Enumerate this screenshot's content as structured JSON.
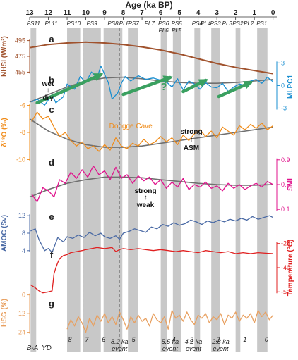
{
  "chart_data": {
    "type": "line",
    "title": "",
    "x_axis": {
      "label": "Age (ka BP)",
      "ticks": [
        "13",
        "12",
        "11",
        "10",
        "9",
        "8",
        "7",
        "6",
        "5",
        "4",
        "3",
        "2",
        "1",
        "0"
      ],
      "range": [
        13.0,
        -0.2
      ],
      "position": "top"
    },
    "phase_bands": [
      {
        "label": "PS11",
        "from": 12.95,
        "to": 12.65
      },
      {
        "label": "PS10",
        "from": 11.0,
        "to": 10.3
      },
      {
        "label": "PS9",
        "from": 10.15,
        "to": 9.2
      },
      {
        "label": "PS8",
        "from": 9.05,
        "to": 8.05
      },
      {
        "label": "PS7",
        "from": 7.75,
        "to": 7.2
      },
      {
        "label": "PS6",
        "from": 6.0,
        "to": 5.65
      },
      {
        "label": "PS5",
        "from": 5.35,
        "to": 4.9
      },
      {
        "label": "PS4",
        "from": 4.2,
        "to": 3.9
      },
      {
        "label": "PS3",
        "from": 3.3,
        "to": 2.85
      },
      {
        "label": "PS2",
        "from": 2.0,
        "to": 1.75
      },
      {
        "label": "PS1",
        "from": 0.85,
        "to": 0.3
      }
    ],
    "phase_labels": [
      {
        "label": "PS11",
        "x": 12.8
      },
      {
        "label": "PL11",
        "x": 11.85
      },
      {
        "label": "PS10",
        "x": 10.65
      },
      {
        "label": "PS9",
        "x": 9.68
      },
      {
        "label": "PS8",
        "x": 8.55
      },
      {
        "label": "PL8",
        "x": 7.95
      },
      {
        "label": "PS7",
        "x": 7.45
      },
      {
        "label": "PL7",
        "x": 6.6
      },
      {
        "label": "PS6",
        "x": 5.85
      },
      {
        "label": "PL6",
        "x": 5.85
      },
      {
        "label": "PS5",
        "x": 5.15
      },
      {
        "label": "PL5",
        "x": 5.15
      },
      {
        "label": "PS4",
        "x": 4.05
      },
      {
        "label": "PL4",
        "x": 3.6
      },
      {
        "label": "PS3",
        "x": 3.08
      },
      {
        "label": "PL3",
        "x": 2.45
      },
      {
        "label": "PS2",
        "x": 1.88
      },
      {
        "label": "PL2",
        "x": 1.3
      },
      {
        "label": "PS1",
        "x": 0.6
      }
    ],
    "dashed_lines": [
      10.15,
      8.2
    ],
    "panels": [
      {
        "id": "a",
        "name": "NHSI",
        "ylabel": "NHSI (W/m²)",
        "side": "left",
        "color": "#a0522d",
        "range": [
          450,
          500
        ],
        "ticks": [
          455,
          475,
          495
        ],
        "x": [
          13,
          12,
          11,
          10,
          9,
          8,
          7,
          6,
          5,
          4,
          3,
          2,
          1,
          0
        ],
        "y": [
          486,
          490,
          492,
          493,
          492,
          490,
          487,
          483,
          478,
          472,
          466,
          461,
          457,
          453
        ]
      },
      {
        "id": "b",
        "name": "MLPC1",
        "ylabel": "MLPC1",
        "side": "right",
        "color": "#1a8fd1",
        "range": [
          -3.8,
          3.5
        ],
        "ticks": [
          -3,
          0,
          3
        ],
        "trend_y": [
          -2.2,
          -1.2,
          -0.2,
          0.6,
          1.0,
          1.1,
          0.9,
          0.6,
          0.4,
          0.3,
          0.3,
          0.4,
          0.6,
          0.8
        ],
        "x": [
          12.9,
          12.6,
          12.2,
          11.8,
          11.6,
          11.2,
          11.0,
          10.6,
          10.3,
          10.0,
          9.7,
          9.4,
          9.2,
          9.0,
          8.8,
          8.6,
          8.3,
          8.1,
          7.9,
          7.6,
          7.2,
          6.8,
          6.4,
          6.0,
          5.7,
          5.4,
          5.1,
          4.8,
          4.5,
          4.2,
          3.9,
          3.6,
          3.3,
          3.0,
          2.7,
          2.4,
          2.1,
          1.8,
          1.5,
          1.2,
          0.9,
          0.6,
          0.3,
          0.0
        ],
        "y": [
          -2.2,
          -1.8,
          -2.6,
          -1.2,
          -2.3,
          -1.5,
          0.2,
          -0.5,
          1.2,
          0.4,
          1.8,
          1.0,
          2.6,
          1.5,
          0.4,
          -1.8,
          -1.0,
          0.3,
          1.2,
          0.6,
          1.3,
          0.8,
          1.0,
          0.7,
          0.5,
          -0.2,
          0.9,
          -0.6,
          0.6,
          0.2,
          -0.5,
          0.4,
          -0.2,
          -0.3,
          0.3,
          -0.8,
          -0.2,
          0.2,
          0.0,
          0.6,
          0.8,
          0.3,
          1.1,
          0.5
        ]
      },
      {
        "id": "c",
        "name": "Dongge Cave δ18O",
        "ylabel": "δ¹⁸O (‰)",
        "side": "left",
        "color": "#f08c1a",
        "range": [
          -10.5,
          -5.5
        ],
        "ticks": [
          -10,
          -8,
          -6
        ],
        "inverted": true,
        "annotation": "Dongge Cave",
        "trend_y": [
          -7.0,
          -7.9,
          -8.5,
          -8.9,
          -9.1,
          -9.1,
          -9.0,
          -8.8,
          -8.6,
          -8.4,
          -8.2,
          -8.0,
          -7.8,
          -7.6
        ],
        "x": [
          12.9,
          12.6,
          12.3,
          12.0,
          11.7,
          11.4,
          11.1,
          10.8,
          10.5,
          10.2,
          9.9,
          9.6,
          9.3,
          9.0,
          8.7,
          8.4,
          8.1,
          7.8,
          7.5,
          7.2,
          6.9,
          6.6,
          6.3,
          6.0,
          5.7,
          5.4,
          5.1,
          4.8,
          4.5,
          4.2,
          3.9,
          3.6,
          3.3,
          3.0,
          2.7,
          2.4,
          2.1,
          1.8,
          1.5,
          1.2,
          0.9,
          0.6,
          0.3,
          0.0
        ],
        "y": [
          -7.2,
          -6.5,
          -7.0,
          -6.8,
          -7.6,
          -8.3,
          -8.0,
          -8.6,
          -9.0,
          -8.7,
          -9.2,
          -9.0,
          -9.4,
          -8.9,
          -9.3,
          -8.4,
          -9.0,
          -9.2,
          -8.8,
          -9.0,
          -8.5,
          -8.9,
          -8.7,
          -8.3,
          -8.7,
          -8.4,
          -8.9,
          -8.2,
          -8.6,
          -8.1,
          -7.8,
          -8.3,
          -7.9,
          -8.4,
          -7.6,
          -7.9,
          -8.2,
          -7.5,
          -7.8,
          -7.4,
          -7.7,
          -7.3,
          -7.8,
          -7.5
        ]
      },
      {
        "id": "d",
        "name": "SMI",
        "ylabel": "SMI",
        "side": "right",
        "color": "#e0138c",
        "range": [
          0.0,
          1.0
        ],
        "ticks": [
          0.1,
          0.5,
          0.9
        ],
        "trend_y": [
          0.3,
          0.42,
          0.52,
          0.58,
          0.62,
          0.62,
          0.61,
          0.58,
          0.55,
          0.52,
          0.5,
          0.49,
          0.49,
          0.5
        ],
        "x": [
          12.9,
          12.6,
          12.3,
          12.0,
          11.7,
          11.4,
          11.1,
          10.8,
          10.5,
          10.2,
          9.9,
          9.6,
          9.3,
          9.0,
          8.7,
          8.4,
          8.1,
          7.8,
          7.5,
          7.2,
          6.9,
          6.6,
          6.3,
          6.0,
          5.7,
          5.4,
          5.1,
          4.8,
          4.5,
          4.2,
          3.9,
          3.6,
          3.3,
          3.0,
          2.7,
          2.4,
          2.1,
          1.8,
          1.5,
          1.2,
          0.9,
          0.6,
          0.3,
          0.0
        ],
        "y": [
          0.35,
          0.22,
          0.45,
          0.4,
          0.3,
          0.58,
          0.52,
          0.7,
          0.6,
          0.74,
          0.62,
          0.8,
          0.66,
          0.72,
          0.58,
          0.78,
          0.6,
          0.66,
          0.52,
          0.64,
          0.56,
          0.62,
          0.5,
          0.58,
          0.44,
          0.54,
          0.46,
          0.6,
          0.42,
          0.5,
          0.46,
          0.54,
          0.44,
          0.48,
          0.4,
          0.52,
          0.44,
          0.5,
          0.42,
          0.48,
          0.52,
          0.46,
          0.55,
          0.5
        ]
      },
      {
        "id": "e",
        "name": "AMOC",
        "ylabel": "AMOC (Sv)",
        "side": "left",
        "color": "#4a6aa5",
        "range": [
          3,
          13
        ],
        "ticks": [
          4,
          8,
          12
        ],
        "x": [
          12.95,
          12.7,
          12.5,
          12.2,
          12.0,
          11.8,
          11.5,
          11.2,
          11.0,
          10.7,
          10.4,
          10.1,
          9.8,
          9.5,
          9.2,
          9.0,
          8.7,
          8.4,
          8.2,
          8.0,
          7.7,
          7.4,
          7.1,
          6.8,
          6.5,
          6.2,
          5.9,
          5.6,
          5.3,
          5.0,
          4.7,
          4.4,
          4.1,
          3.8,
          3.5,
          3.2,
          2.9,
          2.6,
          2.3,
          2.0,
          1.7,
          1.4,
          1.1,
          0.8,
          0.5,
          0.2,
          0.0
        ],
        "y": [
          8.5,
          9.0,
          6.5,
          4.0,
          4.5,
          3.6,
          7.0,
          6.0,
          7.2,
          6.8,
          7.6,
          7.0,
          8.2,
          7.4,
          8.0,
          7.2,
          6.8,
          7.4,
          6.6,
          8.0,
          8.4,
          9.0,
          8.6,
          8.2,
          9.4,
          9.0,
          10.0,
          9.6,
          10.4,
          9.8,
          10.2,
          11.0,
          10.6,
          10.0,
          10.8,
          10.4,
          11.0,
          10.6,
          11.2,
          10.8,
          11.4,
          11.0,
          11.8,
          11.2,
          11.6,
          12.0,
          11.6
        ]
      },
      {
        "id": "f",
        "name": "Temperature",
        "ylabel": "Temperature (°C)",
        "side": "right",
        "color": "#e02020",
        "range": [
          -54,
          -26
        ],
        "ticks": [
          -52,
          -40,
          -28
        ],
        "x": [
          12.95,
          12.7,
          12.5,
          12.3,
          12.0,
          11.8,
          11.7,
          11.6,
          11.5,
          11.4,
          11.2,
          11.0,
          10.8,
          10.5,
          10.2,
          10.0,
          9.7,
          9.4,
          9.0,
          8.6,
          8.4,
          8.2,
          8.0,
          7.6,
          7.2,
          6.8,
          6.4,
          6.0,
          5.6,
          5.2,
          4.8,
          4.4,
          4.0,
          3.6,
          3.2,
          2.8,
          2.4,
          2.0,
          1.6,
          1.2,
          0.8,
          0.4,
          0.0
        ],
        "y": [
          -48.5,
          -50.0,
          -51.5,
          -52.5,
          -52.0,
          -51.5,
          -43.0,
          -40.0,
          -37.5,
          -35.5,
          -34.0,
          -33.5,
          -32.5,
          -32.0,
          -31.5,
          -31.0,
          -30.5,
          -30.0,
          -30.5,
          -30.0,
          -32.0,
          -31.0,
          -30.5,
          -31.0,
          -30.5,
          -31.0,
          -31.5,
          -31.0,
          -31.5,
          -32.0,
          -31.5,
          -32.0,
          -32.5,
          -31.5,
          -32.0,
          -32.5,
          -32.0,
          -33.0,
          -32.5,
          -33.0,
          -32.5,
          -32.8,
          -33.0
        ]
      },
      {
        "id": "g",
        "name": "HSG",
        "ylabel": "HSG (%)",
        "side": "left",
        "color": "#e8a060",
        "range": [
          26,
          -3
        ],
        "ticks": [
          0,
          12,
          24
        ],
        "inverted": true,
        "x": [
          11.0,
          10.8,
          10.6,
          10.4,
          10.2,
          10.0,
          9.8,
          9.6,
          9.4,
          9.2,
          9.0,
          8.8,
          8.6,
          8.4,
          8.2,
          8.0,
          7.8,
          7.6,
          7.4,
          7.2,
          7.0,
          6.8,
          6.6,
          6.4,
          6.2,
          6.0,
          5.8,
          5.6,
          5.4,
          5.2,
          5.0,
          4.8,
          4.6,
          4.4,
          4.2,
          4.0,
          3.8,
          3.6,
          3.4,
          3.2,
          3.0,
          2.8,
          2.6,
          2.4,
          2.2,
          2.0,
          1.8,
          1.6,
          1.4,
          1.2,
          1.0,
          0.8,
          0.6,
          0.4,
          0.2,
          0.0
        ],
        "y": [
          22,
          16,
          20,
          14,
          18,
          24,
          15,
          20,
          13,
          17,
          12,
          18,
          14,
          19,
          11,
          16,
          22,
          14,
          18,
          13,
          17,
          15,
          20,
          12,
          16,
          18,
          14,
          22,
          10,
          15,
          13,
          17,
          11,
          16,
          19,
          13,
          15,
          12,
          18,
          14,
          16,
          12,
          19,
          13,
          15,
          11,
          17,
          13,
          15,
          12,
          18,
          10,
          14,
          11,
          16,
          13
        ]
      }
    ],
    "event_numbers": [
      {
        "label": "8",
        "x": 10.85
      },
      {
        "label": "7",
        "x": 9.95
      },
      {
        "label": "6",
        "x": 9.05
      },
      {
        "label": "5",
        "x": 7.45
      },
      {
        "label": "4",
        "x": 5.3
      },
      {
        "label": "3",
        "x": 4.35
      },
      {
        "label": "2",
        "x": 2.95
      },
      {
        "label": "1",
        "x": 1.5
      },
      {
        "label": "0",
        "x": 0.35
      }
    ],
    "event_labels": [
      {
        "line1": "8.2 ka",
        "line2": "event",
        "x": 8.2
      },
      {
        "line1": "5.5 ka",
        "line2": "event",
        "x": 5.5
      },
      {
        "line1": "4.2 ka",
        "line2": "event",
        "x": 4.25
      },
      {
        "line1": "2.8 ka",
        "line2": "event",
        "x": 2.8
      }
    ],
    "period_labels": [
      {
        "label": "B-A",
        "x": 12.85
      },
      {
        "label": "YD",
        "x": 12.1
      }
    ],
    "annotations": {
      "wet": "wet",
      "dry": "dry",
      "question": "?",
      "strong_asm_1": "strong",
      "strong_asm_2": "ASM",
      "smi_strong": "strong",
      "smi_weak": "weak"
    },
    "colors": {
      "band": "#c8c8c8",
      "trend": "#707070",
      "arrow": "#3aa060",
      "axis": "#444444"
    }
  }
}
